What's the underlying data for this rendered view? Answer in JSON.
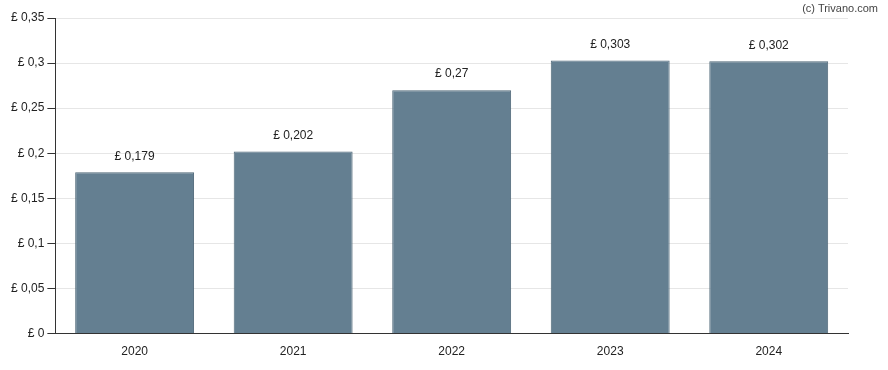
{
  "chart_data": {
    "type": "bar",
    "annotations": [
      "(c) Trivano.com"
    ],
    "categories": [
      "2020",
      "2021",
      "2022",
      "2023",
      "2024"
    ],
    "values": [
      0.179,
      0.202,
      0.27,
      0.303,
      0.302
    ],
    "value_labels": [
      "£ 0,179",
      "£ 0,202",
      "£ 0,27",
      "£ 0,303",
      "£ 0,302"
    ],
    "data_labels": true,
    "color": "#647f91",
    "ylim": [
      0,
      0.35
    ],
    "yticks": [
      {
        "value": 0,
        "label": "£ 0"
      },
      {
        "value": 0.05,
        "label": "£ 0,05"
      },
      {
        "value": 0.1,
        "label": "£ 0,1"
      },
      {
        "value": 0.15,
        "label": "£ 0,15"
      },
      {
        "value": 0.2,
        "label": "£ 0,2"
      },
      {
        "value": 0.25,
        "label": "£ 0,25"
      },
      {
        "value": 0.3,
        "label": "£ 0,3"
      },
      {
        "value": 0.35,
        "label": "£ 0,35"
      }
    ],
    "grid": true
  }
}
